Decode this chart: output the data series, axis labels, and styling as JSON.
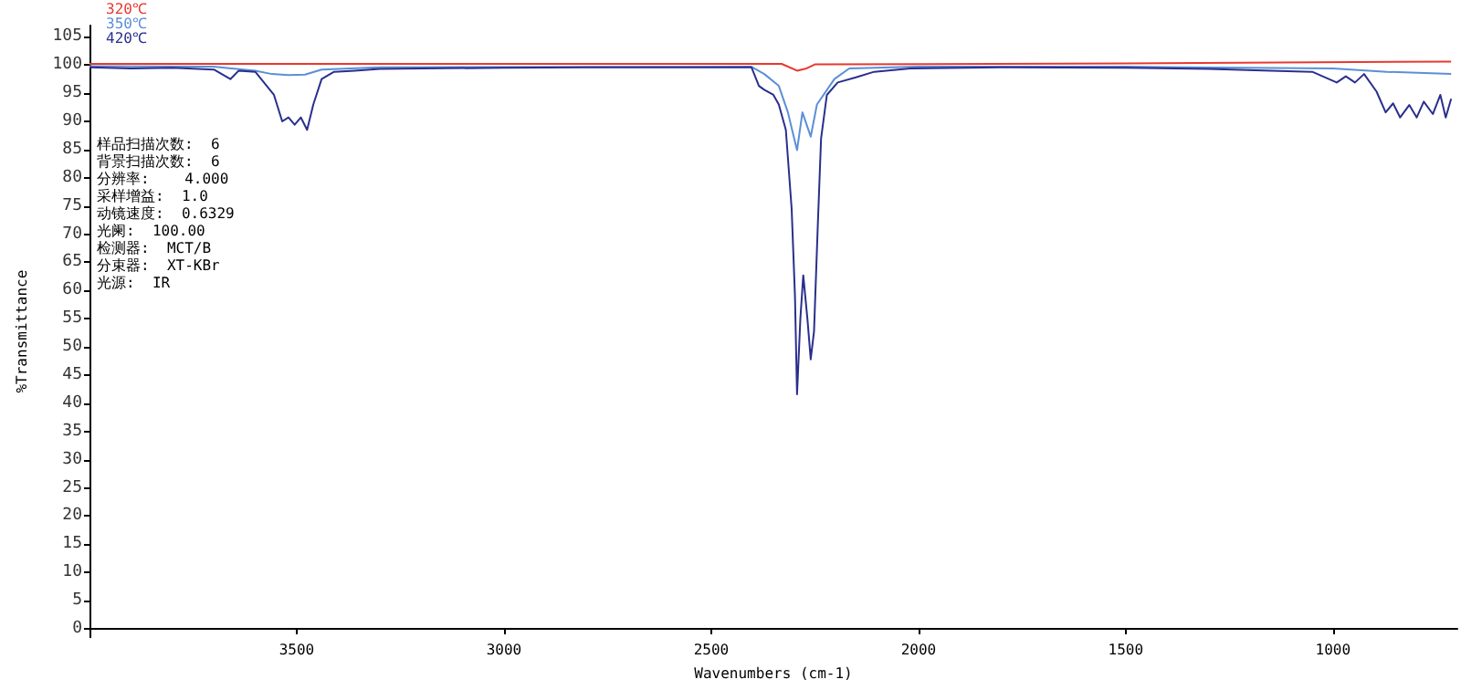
{
  "chart_data": {
    "type": "line",
    "xlabel": "Wavenumbers (cm-1)",
    "ylabel": "%Transmittance",
    "xlim": [
      4000,
      700
    ],
    "xticks": [
      3500,
      3000,
      2500,
      2000,
      1500,
      1000
    ],
    "ylim": [
      -1.5,
      107
    ],
    "yticks": [
      0,
      5,
      10,
      15,
      20,
      25,
      30,
      35,
      40,
      45,
      50,
      55,
      60,
      65,
      70,
      75,
      80,
      85,
      90,
      95,
      100,
      105
    ],
    "grid": false,
    "legend": "top left",
    "marker": "none",
    "line_style": "solid",
    "annotations": [
      "样品扫描次数:  6",
      "背景扫描次数:  6",
      "分辨率:    4.000",
      "采样增益:  1.0",
      "动镜速度:  0.6329",
      "光阑:  100.00",
      "检测器:  MCT/B",
      "分束器:  XT-KBr",
      "光源:  IR"
    ],
    "series": [
      {
        "name": "320℃",
        "color": "#e8382f",
        "x": [
          4000,
          2330,
          2293,
          2270,
          2250,
          1500,
          715
        ],
        "values": [
          100.2,
          100.2,
          99,
          99.4,
          100.1,
          100.3,
          100.6
        ]
      },
      {
        "name": "350℃",
        "color": "#5b8fd8",
        "x": [
          4000,
          3700,
          3600,
          3560,
          3520,
          3480,
          3440,
          3300,
          2403,
          2372,
          2337,
          2315,
          2302,
          2293,
          2280,
          2260,
          2245,
          2203,
          2167,
          2000,
          1500,
          1000,
          870,
          715
        ],
        "values": [
          99.8,
          99.7,
          99,
          98.4,
          98.2,
          98.3,
          99.2,
          99.6,
          99.7,
          98.4,
          96.3,
          91.6,
          87.6,
          84.9,
          91.6,
          87.3,
          93,
          97.5,
          99.4,
          99.7,
          99.7,
          99.4,
          98.8,
          98.4
        ]
      },
      {
        "name": "420℃",
        "color": "#2a2f8c",
        "x": [
          4000,
          3900,
          3800,
          3700,
          3660,
          3640,
          3600,
          3580,
          3555,
          3535,
          3520,
          3505,
          3490,
          3475,
          3460,
          3440,
          3410,
          3360,
          3300,
          3200,
          3000,
          2800,
          2600,
          2403,
          2385,
          2372,
          2350,
          2337,
          2320,
          2306,
          2298,
          2293,
          2285,
          2278,
          2268,
          2260,
          2252,
          2243,
          2235,
          2221,
          2195,
          2151,
          2107,
          2020,
          1800,
          1500,
          1300,
          1150,
          1050,
          991,
          969,
          947,
          925,
          895,
          873,
          855,
          838,
          816,
          798,
          781,
          759,
          741,
          728,
          715
        ],
        "values": [
          99.6,
          99.4,
          99.5,
          99.2,
          97.5,
          99,
          98.8,
          97,
          94.7,
          90,
          90.7,
          89.4,
          90.7,
          88.5,
          93,
          97.5,
          98.8,
          99,
          99.3,
          99.4,
          99.5,
          99.6,
          99.6,
          99.6,
          96.3,
          95.6,
          94.7,
          93,
          88.5,
          74.5,
          59,
          41.6,
          55,
          62.7,
          55,
          47.8,
          52.8,
          71.4,
          87,
          94.7,
          96.9,
          97.8,
          98.8,
          99.4,
          99.6,
          99.5,
          99.3,
          99,
          98.8,
          96.9,
          98,
          96.9,
          98.4,
          95.3,
          91.6,
          93.2,
          90.7,
          92.9,
          90.7,
          93.5,
          91.3,
          94.7,
          90.7,
          94
        ]
      }
    ]
  }
}
